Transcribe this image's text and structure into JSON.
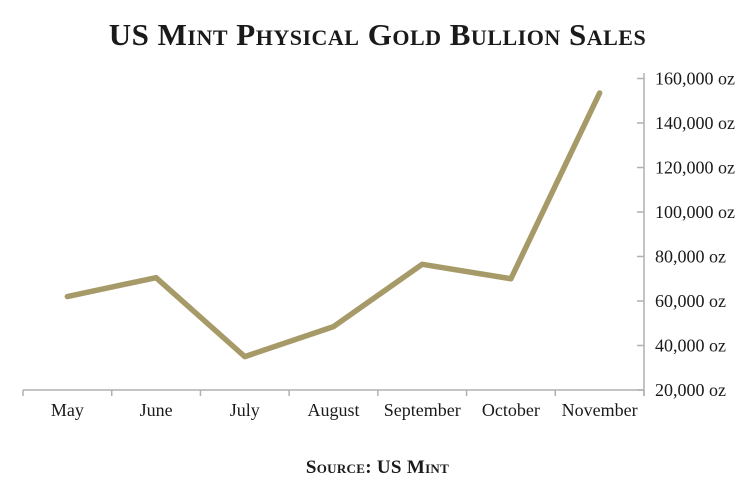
{
  "chart_data": {
    "type": "line",
    "title": "US Mint Physical Gold Bullion Sales",
    "categories": [
      "May",
      "June",
      "July",
      "August",
      "September",
      "October",
      "November"
    ],
    "values": [
      62000,
      70500,
      35000,
      48500,
      76500,
      70000,
      153500
    ],
    "unit": "oz",
    "xlabel": "",
    "ylabel": "",
    "y_ticks": [
      20000,
      40000,
      60000,
      80000,
      100000,
      120000,
      140000,
      160000
    ],
    "y_tick_labels": [
      "20,000 oz",
      "40,000 oz",
      "60,000 oz",
      "80,000 oz",
      "100,000 oz",
      "120,000 oz",
      "140,000 oz",
      "160,000 oz"
    ],
    "ylim": [
      20000,
      165000
    ],
    "grid": false,
    "legend": "none",
    "y_axis_side": "right",
    "line_color": "#A69B68",
    "axis_color": "#B0B0B0",
    "text_color": "#1A1A1A"
  },
  "footer": {
    "source_label": "Source: US Mint"
  }
}
